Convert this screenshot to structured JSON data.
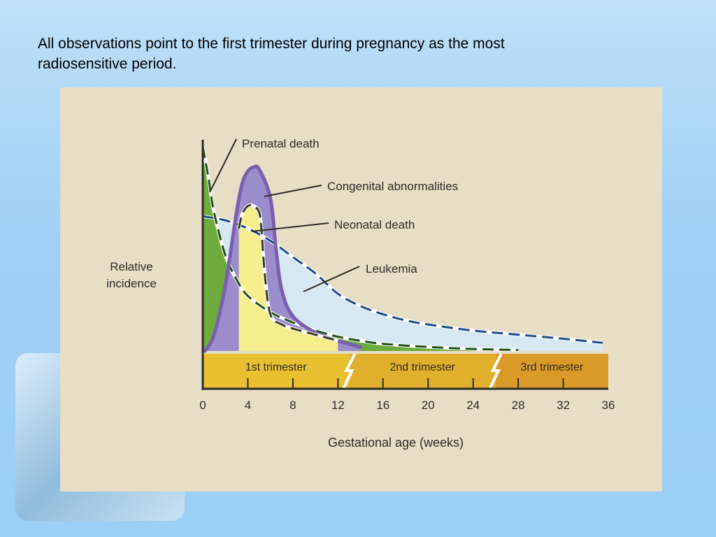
{
  "slide": {
    "caption_line1": "All observations point to the first trimester during pregnancy as the most",
    "caption_line2": "radiosensitive period."
  },
  "chart_data": {
    "type": "line",
    "title": "",
    "xlabel": "Gestational age (weeks)",
    "ylabel_line1": "Relative",
    "ylabel_line2": "incidence",
    "x_ticks": [
      0,
      4,
      8,
      12,
      16,
      20,
      24,
      28,
      32,
      36
    ],
    "xlim": [
      0,
      36
    ],
    "ylim": [
      0,
      100
    ],
    "grid": false,
    "legend": "annotations",
    "trimesters": [
      {
        "label": "1st trimester",
        "start": 0,
        "end": 13,
        "color": "#e8c030"
      },
      {
        "label": "2nd trimester",
        "start": 13,
        "end": 26,
        "color": "#e0b02c"
      },
      {
        "label": "3rd trimester",
        "start": 26,
        "end": 36,
        "color": "#d99a28"
      }
    ],
    "series": [
      {
        "name": "Prenatal death",
        "color": "#6faa3c",
        "x": [
          0,
          0.5,
          1,
          2,
          3,
          4,
          6,
          8,
          10,
          12,
          14,
          16,
          20,
          24,
          28
        ],
        "y": [
          100,
          85,
          68,
          47,
          35,
          27,
          19,
          14,
          10,
          7,
          5,
          3.5,
          2,
          1,
          0.5
        ]
      },
      {
        "name": "Congenital abnormalities",
        "color": "#9b8ccc",
        "x": [
          0.2,
          1,
          2,
          3,
          3.5,
          4,
          4.5,
          5,
          6,
          6.5,
          7,
          8,
          10,
          12,
          14
        ],
        "y": [
          0,
          8,
          32,
          68,
          82,
          88,
          90,
          89,
          75,
          50,
          30,
          17,
          9,
          5,
          2
        ]
      },
      {
        "name": "Neonatal death",
        "color": "#f6ee8c",
        "x": [
          3.2,
          3.5,
          4,
          4.5,
          5,
          5.2,
          5.5,
          6,
          7,
          8,
          10,
          12
        ],
        "y": [
          60,
          67,
          71,
          71,
          68,
          60,
          38,
          18,
          13,
          11,
          8,
          5
        ]
      },
      {
        "name": "Leukemia",
        "color": "#d6e8f2",
        "x": [
          0,
          2,
          4,
          6,
          8,
          10,
          12,
          14,
          16,
          18,
          20,
          24,
          28,
          32,
          35.5
        ],
        "y": [
          66,
          64,
          60,
          54,
          46,
          38,
          28,
          22,
          18,
          15,
          13,
          10,
          8,
          6,
          4
        ]
      }
    ]
  }
}
